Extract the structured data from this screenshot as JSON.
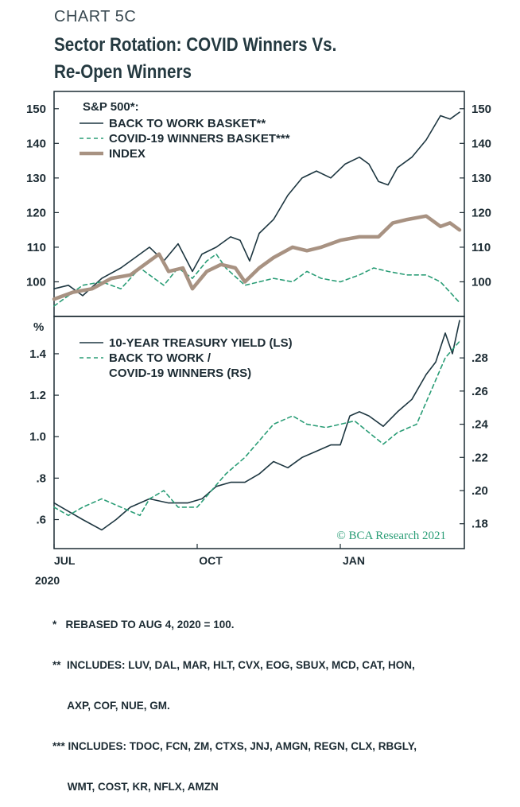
{
  "header": {
    "chart_number": "CHART 5C",
    "title_line1": "Sector Rotation: COVID Winners Vs.",
    "title_line2": "Re-Open Winners"
  },
  "watermark": "© BCA Research 2021",
  "colors": {
    "back_to_work": "#1d3640",
    "covid_winners": "#2a9d76",
    "index": "#a89282",
    "frame": "#1c2b33"
  },
  "x_axis": {
    "ticks": [
      {
        "label": "JUL",
        "t": 0.0
      },
      {
        "label": "OCT",
        "t": 3.0
      },
      {
        "label": "JAN",
        "t": 6.0
      }
    ],
    "year_label": "2020",
    "range_months": [
      0,
      8.6
    ]
  },
  "footnotes": [
    "*   REBASED TO AUG 4, 2020 = 100.",
    "**  INCLUDES: LUV, DAL, MAR, HLT, CVX, EOG, SBUX, MCD, CAT, HON,",
    "     AXP, COF, NUE, GM.",
    "*** INCLUDES: TDOC, FCN, ZM, CTXS, JNJ, AMGN, REGN, CLX, RBGLY,",
    "     WMT, COST, KR, NFLX, AMZN"
  ],
  "chart_data": [
    {
      "type": "line",
      "panel": "top",
      "legend_heading": "S&P 500*:",
      "ylim": [
        90,
        155
      ],
      "yticks": [
        100,
        110,
        120,
        130,
        140,
        150
      ],
      "ytick_labels": [
        "100",
        "110",
        "120",
        "130",
        "140",
        "150"
      ],
      "legend_position": "top-left",
      "series": [
        {
          "name": "BACK TO WORK BASKET**",
          "style": "solid",
          "color": "#1d3640",
          "points": [
            [
              0,
              98
            ],
            [
              0.3,
              99
            ],
            [
              0.6,
              96
            ],
            [
              1.0,
              101
            ],
            [
              1.4,
              104
            ],
            [
              1.8,
              108
            ],
            [
              2.0,
              110
            ],
            [
              2.3,
              106
            ],
            [
              2.6,
              111
            ],
            [
              2.9,
              103
            ],
            [
              3.1,
              108
            ],
            [
              3.4,
              110
            ],
            [
              3.7,
              113
            ],
            [
              3.9,
              112
            ],
            [
              4.1,
              106
            ],
            [
              4.3,
              114
            ],
            [
              4.6,
              118
            ],
            [
              4.9,
              125
            ],
            [
              5.2,
              130
            ],
            [
              5.5,
              132
            ],
            [
              5.8,
              130
            ],
            [
              6.1,
              134
            ],
            [
              6.4,
              136
            ],
            [
              6.6,
              134
            ],
            [
              6.8,
              129
            ],
            [
              7.0,
              128
            ],
            [
              7.2,
              133
            ],
            [
              7.5,
              136
            ],
            [
              7.8,
              141
            ],
            [
              8.1,
              148
            ],
            [
              8.3,
              147
            ],
            [
              8.5,
              149
            ]
          ]
        },
        {
          "name": "COVID-19 WINNERS BASKET***",
          "style": "dashed",
          "color": "#2a9d76",
          "points": [
            [
              0,
              93
            ],
            [
              0.3,
              96
            ],
            [
              0.6,
              99
            ],
            [
              1.0,
              100
            ],
            [
              1.4,
              98
            ],
            [
              1.8,
              104
            ],
            [
              2.0,
              102
            ],
            [
              2.3,
              99
            ],
            [
              2.6,
              104
            ],
            [
              2.9,
              101
            ],
            [
              3.2,
              106
            ],
            [
              3.4,
              108
            ],
            [
              3.6,
              104
            ],
            [
              4.0,
              99
            ],
            [
              4.3,
              100
            ],
            [
              4.6,
              101
            ],
            [
              5.0,
              100
            ],
            [
              5.3,
              103
            ],
            [
              5.6,
              101
            ],
            [
              6.0,
              100
            ],
            [
              6.4,
              102
            ],
            [
              6.7,
              104
            ],
            [
              7.0,
              103
            ],
            [
              7.4,
              102
            ],
            [
              7.8,
              102
            ],
            [
              8.1,
              100
            ],
            [
              8.3,
              97
            ],
            [
              8.5,
              94
            ]
          ]
        },
        {
          "name": "INDEX",
          "style": "thick",
          "color": "#a89282",
          "points": [
            [
              0,
              95
            ],
            [
              0.4,
              97
            ],
            [
              0.8,
              98
            ],
            [
              1.2,
              101
            ],
            [
              1.6,
              102
            ],
            [
              2.0,
              106
            ],
            [
              2.2,
              108
            ],
            [
              2.4,
              103
            ],
            [
              2.7,
              104
            ],
            [
              2.9,
              98
            ],
            [
              3.2,
              103
            ],
            [
              3.5,
              105
            ],
            [
              3.8,
              104
            ],
            [
              4.0,
              100
            ],
            [
              4.3,
              104
            ],
            [
              4.6,
              107
            ],
            [
              5.0,
              110
            ],
            [
              5.3,
              109
            ],
            [
              5.6,
              110
            ],
            [
              6.0,
              112
            ],
            [
              6.4,
              113
            ],
            [
              6.8,
              113
            ],
            [
              7.1,
              117
            ],
            [
              7.4,
              118
            ],
            [
              7.8,
              119
            ],
            [
              8.1,
              116
            ],
            [
              8.3,
              117
            ],
            [
              8.5,
              115
            ]
          ]
        }
      ]
    },
    {
      "type": "line",
      "panel": "bottom",
      "left_unit": "%",
      "left_ylim": [
        0.46,
        1.58
      ],
      "left_yticks": [
        0.6,
        0.8,
        1.0,
        1.2,
        1.4
      ],
      "left_ytick_labels": [
        ".6",
        ".8",
        "1.0",
        "1.2",
        "1.4"
      ],
      "right_ylim": [
        0.165,
        0.305
      ],
      "right_yticks": [
        0.18,
        0.2,
        0.22,
        0.24,
        0.26,
        0.28
      ],
      "right_ytick_labels": [
        ".18",
        ".20",
        ".22",
        ".24",
        ".26",
        ".28"
      ],
      "legend_position": "top-left",
      "series": [
        {
          "name": "10-YEAR TREASURY YIELD (LS)",
          "axis": "left",
          "style": "solid",
          "color": "#1d3640",
          "points": [
            [
              0,
              0.68
            ],
            [
              0.3,
              0.64
            ],
            [
              0.6,
              0.6
            ],
            [
              1.0,
              0.55
            ],
            [
              1.3,
              0.6
            ],
            [
              1.6,
              0.66
            ],
            [
              2.0,
              0.7
            ],
            [
              2.4,
              0.68
            ],
            [
              2.8,
              0.68
            ],
            [
              3.1,
              0.7
            ],
            [
              3.4,
              0.76
            ],
            [
              3.7,
              0.78
            ],
            [
              4.0,
              0.78
            ],
            [
              4.3,
              0.82
            ],
            [
              4.6,
              0.88
            ],
            [
              4.9,
              0.85
            ],
            [
              5.2,
              0.9
            ],
            [
              5.5,
              0.93
            ],
            [
              5.8,
              0.96
            ],
            [
              6.0,
              0.96
            ],
            [
              6.2,
              1.1
            ],
            [
              6.4,
              1.12
            ],
            [
              6.6,
              1.1
            ],
            [
              6.9,
              1.05
            ],
            [
              7.2,
              1.12
            ],
            [
              7.5,
              1.18
            ],
            [
              7.8,
              1.3
            ],
            [
              8.0,
              1.36
            ],
            [
              8.2,
              1.5
            ],
            [
              8.35,
              1.4
            ],
            [
              8.5,
              1.56
            ]
          ]
        },
        {
          "name": "BACK TO WORK / COVID-19 WINNERS (RS)",
          "name_line1": "BACK TO WORK /",
          "name_line2": "COVID-19 WINNERS (RS)",
          "axis": "right",
          "style": "dashed",
          "color": "#2a9d76",
          "points": [
            [
              0,
              0.19
            ],
            [
              0.3,
              0.185
            ],
            [
              0.6,
              0.19
            ],
            [
              1.0,
              0.195
            ],
            [
              1.4,
              0.19
            ],
            [
              1.8,
              0.185
            ],
            [
              2.0,
              0.195
            ],
            [
              2.3,
              0.2
            ],
            [
              2.6,
              0.19
            ],
            [
              3.0,
              0.19
            ],
            [
              3.3,
              0.2
            ],
            [
              3.6,
              0.21
            ],
            [
              4.0,
              0.22
            ],
            [
              4.3,
              0.23
            ],
            [
              4.6,
              0.24
            ],
            [
              5.0,
              0.245
            ],
            [
              5.3,
              0.24
            ],
            [
              5.7,
              0.238
            ],
            [
              6.0,
              0.24
            ],
            [
              6.3,
              0.242
            ],
            [
              6.6,
              0.235
            ],
            [
              6.9,
              0.228
            ],
            [
              7.2,
              0.235
            ],
            [
              7.6,
              0.24
            ],
            [
              7.9,
              0.26
            ],
            [
              8.2,
              0.28
            ],
            [
              8.5,
              0.29
            ]
          ]
        }
      ]
    }
  ]
}
